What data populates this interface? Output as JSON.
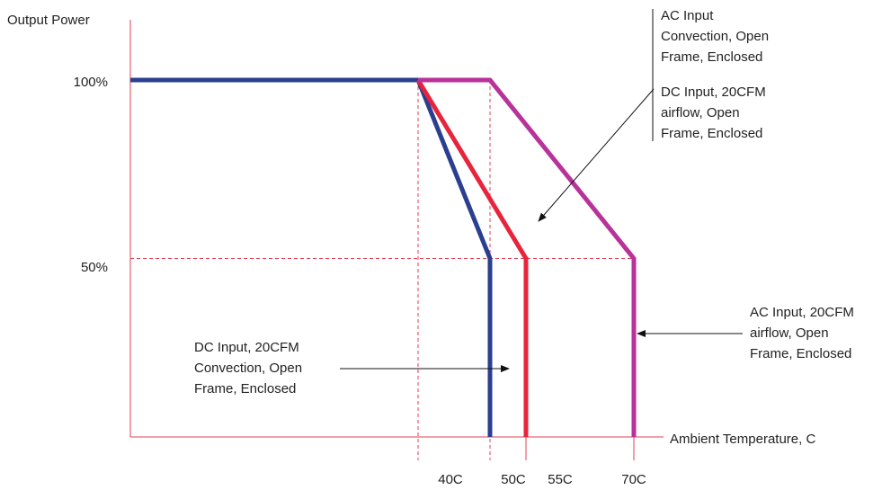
{
  "chart_data": {
    "type": "line",
    "ylabel": "Output Power",
    "xlabel": "Ambient Temperature, C",
    "xlim": [
      0,
      70
    ],
    "ylim": [
      0,
      100
    ],
    "x_ticks": [
      {
        "value": 40,
        "label": "40C"
      },
      {
        "value": 50,
        "label": "50C"
      },
      {
        "value": 55,
        "label": "55C"
      },
      {
        "value": 70,
        "label": "70C"
      }
    ],
    "y_ticks": [
      {
        "value": 100,
        "label": "100%"
      },
      {
        "value": 50,
        "label": "50%"
      }
    ],
    "series": [
      {
        "color": "#2a3f8f",
        "points": [
          [
            0,
            100
          ],
          [
            40,
            100
          ],
          [
            50,
            50
          ],
          [
            50,
            0
          ]
        ]
      },
      {
        "color": "#e8243c",
        "points": [
          [
            40,
            100
          ],
          [
            55,
            50
          ],
          [
            55,
            0
          ]
        ]
      },
      {
        "color": "#b8329a",
        "points": [
          [
            40,
            100
          ],
          [
            50,
            100
          ],
          [
            70,
            50
          ],
          [
            70,
            0
          ]
        ]
      }
    ],
    "grid": "dashed reference lines at 40C, 50C and 50%",
    "annotations": [
      {
        "lines": [
          "AC Input",
          "Convection, Open",
          "Frame, Enclosed"
        ]
      },
      {
        "lines": [
          "DC Input, 20CFM",
          "airflow, Open",
          "Frame, Enclosed"
        ]
      },
      {
        "lines": [
          "AC Input, 20CFM",
          "airflow, Open",
          "Frame, Enclosed"
        ]
      },
      {
        "lines": [
          "DC Input, 20CFM",
          "Convection, Open",
          "Frame, Enclosed"
        ]
      }
    ],
    "colors": {
      "axis": "#e04050",
      "text": "#222222"
    }
  }
}
